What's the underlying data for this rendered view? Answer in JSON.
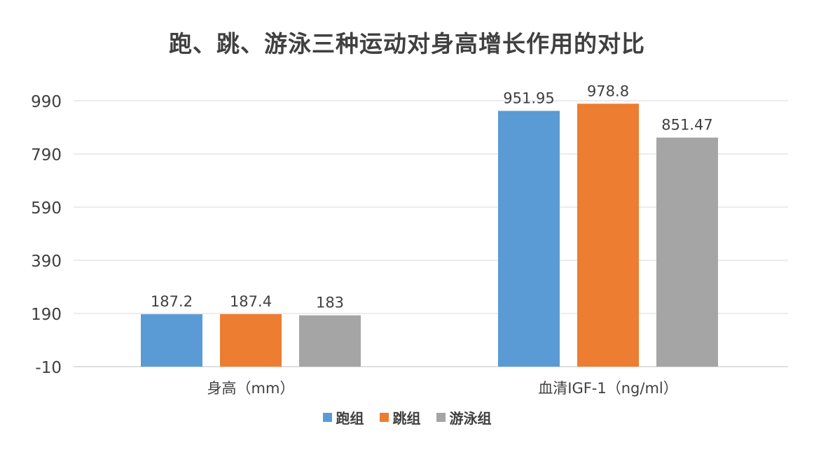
{
  "chart_data": {
    "type": "bar",
    "title": "跑、跳、游泳三种运动对身高增长作用的对比",
    "categories": [
      "身高（mm）",
      "血清IGF-1（ng/ml）"
    ],
    "series": [
      {
        "name": "跑组",
        "color": "#5B9BD5",
        "values": [
          187.2,
          951.95
        ],
        "labels": [
          "187.2",
          "951.95"
        ]
      },
      {
        "name": "跳组",
        "color": "#ED7D31",
        "values": [
          187.4,
          978.8
        ],
        "labels": [
          "187.4",
          "978.8"
        ]
      },
      {
        "name": "游泳组",
        "color": "#A5A5A5",
        "values": [
          183,
          851.47
        ],
        "labels": [
          "183",
          "851.47"
        ]
      }
    ],
    "yticks": [
      -10,
      190,
      390,
      590,
      790,
      990
    ],
    "ylim": [
      -10,
      1040
    ],
    "xlabel": "",
    "ylabel": "",
    "grid": true,
    "legend_position": "bottom"
  }
}
